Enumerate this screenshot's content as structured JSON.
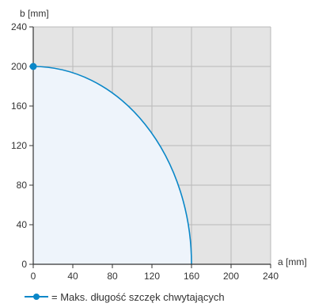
{
  "colors": {
    "series": "#0a87c8",
    "fill_under": "#eef4fb",
    "plot_background": "#e4e4e4",
    "grid": "#b9b9b9",
    "axis": "#333333"
  },
  "legend": {
    "text": "= Maks. długość szczęk chwytających",
    "icon": "line-with-dot-icon"
  },
  "chart_data": {
    "type": "line",
    "title": "",
    "xlabel": "a [mm]",
    "ylabel": "b [mm]",
    "xlim": [
      0,
      240
    ],
    "ylim": [
      0,
      240
    ],
    "x_ticks": [
      0,
      40,
      80,
      120,
      160,
      200,
      240
    ],
    "y_ticks": [
      0,
      40,
      80,
      120,
      160,
      200,
      240
    ],
    "grid": true,
    "legend_position": "bottom-left",
    "series": [
      {
        "name": "Maks. długość szczęk chwytających",
        "curve": "quarter-ellipse",
        "x": [
          0,
          40,
          80,
          100,
          120,
          140,
          150,
          155,
          160
        ],
        "y": [
          200,
          193.6,
          173.2,
          156.1,
          132.3,
          96.8,
          69.6,
          49.4,
          0
        ],
        "filled": true,
        "markers": [
          {
            "x": 0,
            "y": 200
          }
        ]
      }
    ]
  }
}
